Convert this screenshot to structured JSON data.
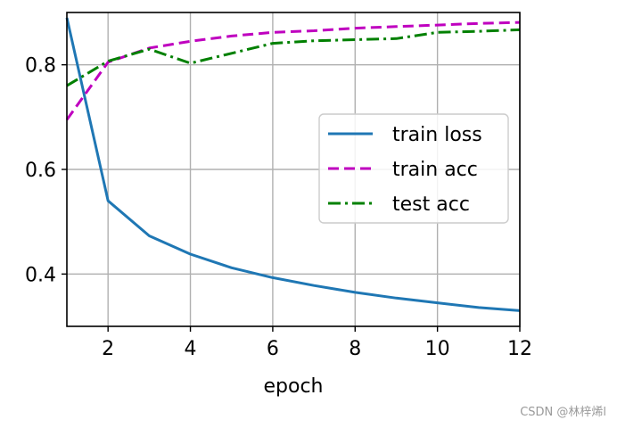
{
  "chart_data": {
    "type": "line",
    "title": "",
    "xlabel": "epoch",
    "ylabel": "",
    "xlim": [
      1,
      12
    ],
    "ylim": [
      0.3,
      0.9
    ],
    "xticks": [
      2,
      4,
      6,
      8,
      10,
      12
    ],
    "yticks": [
      0.4,
      0.6,
      0.8
    ],
    "grid": true,
    "legend": "center-right",
    "series": [
      {
        "name": "train loss",
        "color": "#1f77b4",
        "dash": "solid",
        "x": [
          1,
          2,
          3,
          4,
          5,
          6,
          7,
          8,
          9,
          10,
          11,
          12
        ],
        "values": [
          0.89,
          0.54,
          0.473,
          0.438,
          0.412,
          0.393,
          0.378,
          0.365,
          0.354,
          0.345,
          0.336,
          0.33
        ]
      },
      {
        "name": "train acc",
        "color": "#bf00bf",
        "dash": "dashed",
        "x": [
          1,
          2,
          3,
          4,
          5,
          6,
          7,
          8,
          9,
          10,
          11,
          12
        ],
        "values": [
          0.695,
          0.805,
          0.832,
          0.845,
          0.855,
          0.862,
          0.865,
          0.87,
          0.873,
          0.876,
          0.879,
          0.881
        ]
      },
      {
        "name": "test acc",
        "color": "#008000",
        "dash": "dashdot",
        "x": [
          1,
          2,
          3,
          4,
          5,
          6,
          7,
          8,
          9,
          10,
          11,
          12
        ],
        "values": [
          0.76,
          0.807,
          0.83,
          0.803,
          0.822,
          0.841,
          0.846,
          0.848,
          0.85,
          0.862,
          0.864,
          0.867
        ]
      }
    ]
  },
  "watermark": "CSDN @林梓烯l"
}
